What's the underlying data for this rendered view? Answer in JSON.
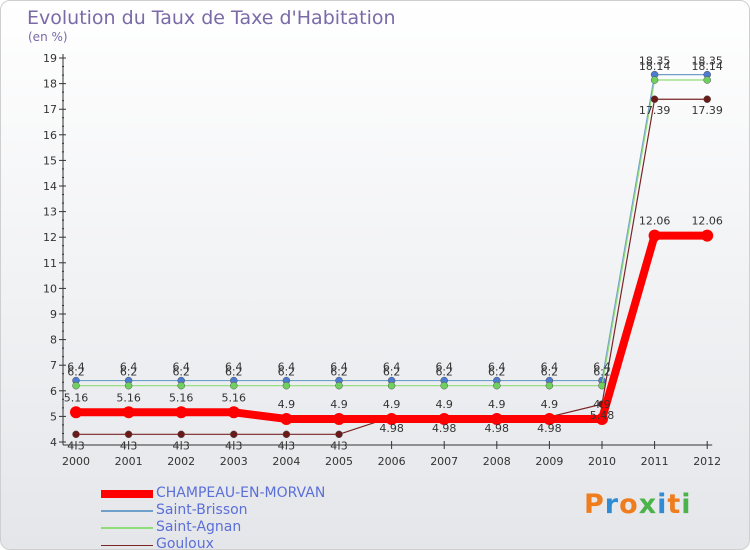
{
  "header": {
    "title": "Evolution du Taux de Taxe d'Habitation",
    "unit": "(en %)"
  },
  "logo": {
    "text": "Proxiti",
    "colors": [
      "#ef7d1e",
      "#2e8bd4",
      "#ef7d1e",
      "#4cb34a",
      "#2e8bd4",
      "#ef7d1e",
      "#4cb34a"
    ]
  },
  "chart_data": {
    "type": "line",
    "title": "Evolution du Taux de Taxe d'Habitation",
    "ylabel": "(en %)",
    "xlabel": "",
    "ylim": [
      4,
      19
    ],
    "yticks": [
      "4",
      "5",
      "6",
      "7",
      "8",
      "9",
      "10",
      "11",
      "12",
      "13",
      "14",
      "15",
      "16",
      "17",
      "18",
      "19"
    ],
    "categories": [
      "2000",
      "2001",
      "2002",
      "2003",
      "2004",
      "2005",
      "2006",
      "2007",
      "2008",
      "2009",
      "2010",
      "2011",
      "2012"
    ],
    "grid": false,
    "series": [
      {
        "name": "CHAMPEAU-EN-MORVAN",
        "color": "#ff0000",
        "values": [
          5.16,
          5.16,
          5.16,
          5.16,
          4.9,
          4.9,
          4.9,
          4.9,
          4.9,
          4.9,
          4.9,
          12.06,
          12.06
        ],
        "labels": [
          "5.16",
          "5.16",
          "5.16",
          "5.16",
          "4.9",
          "4.9",
          "4.9",
          "4.9",
          "4.9",
          "4.9",
          "4.9",
          "12.06",
          "12.06"
        ]
      },
      {
        "name": "Saint-Brisson",
        "color": "#6f9fcb",
        "values": [
          6.4,
          6.4,
          6.4,
          6.4,
          6.4,
          6.4,
          6.4,
          6.4,
          6.4,
          6.4,
          6.4,
          18.35,
          18.35
        ],
        "labels": [
          "6.4",
          "6.4",
          "6.4",
          "6.4",
          "6.4",
          "6.4",
          "6.4",
          "6.4",
          "6.4",
          "6.4",
          "6.4",
          "18.35",
          "18.35"
        ]
      },
      {
        "name": "Saint-Agnan",
        "color": "#8fdc7a",
        "values": [
          6.2,
          6.2,
          6.2,
          6.2,
          6.2,
          6.2,
          6.2,
          6.2,
          6.2,
          6.2,
          6.2,
          18.14,
          18.14
        ],
        "labels": [
          "6.2",
          "6.2",
          "6.2",
          "6.2",
          "6.2",
          "6.2",
          "6.2",
          "6.2",
          "6.2",
          "6.2",
          "6.2",
          "18.14",
          "18.14"
        ]
      },
      {
        "name": "Gouloux",
        "color": "#7a2626",
        "values": [
          4.3,
          4.3,
          4.3,
          4.3,
          4.3,
          4.3,
          4.98,
          4.98,
          4.98,
          4.98,
          5.48,
          17.39,
          17.39
        ],
        "labels": [
          "4.3",
          "4.3",
          "4.3",
          "4.3",
          "4.3",
          "4.3",
          "4.98",
          "4.98",
          "4.98",
          "4.98",
          "5.48",
          "17.39",
          "17.39"
        ]
      }
    ]
  }
}
